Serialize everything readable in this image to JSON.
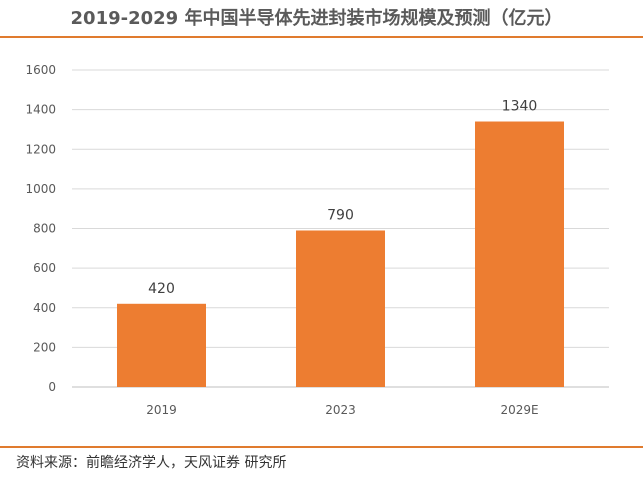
{
  "title": "2019-2029 年中国半导体先进封装市场规模及预测（亿元）",
  "source": "资料来源：前瞻经济学人，天风证券 研究所",
  "colors": {
    "bar": "#ed7d31",
    "rule": "#e07b2e",
    "grid": "#d9d9d9"
  },
  "chart_data": {
    "type": "bar",
    "title": "2019-2029 年中国半导体先进封装市场规模及预测（亿元）",
    "categories": [
      "2019",
      "2023",
      "2029E"
    ],
    "values": [
      420,
      790,
      1340
    ],
    "data_labels": [
      "420",
      "790",
      "1340"
    ],
    "yticks": [
      0,
      200,
      400,
      600,
      800,
      1000,
      1200,
      1400,
      1600
    ],
    "ylim": [
      0,
      1600
    ],
    "xlabel": "",
    "ylabel": "",
    "grid": true,
    "legend": "none"
  }
}
